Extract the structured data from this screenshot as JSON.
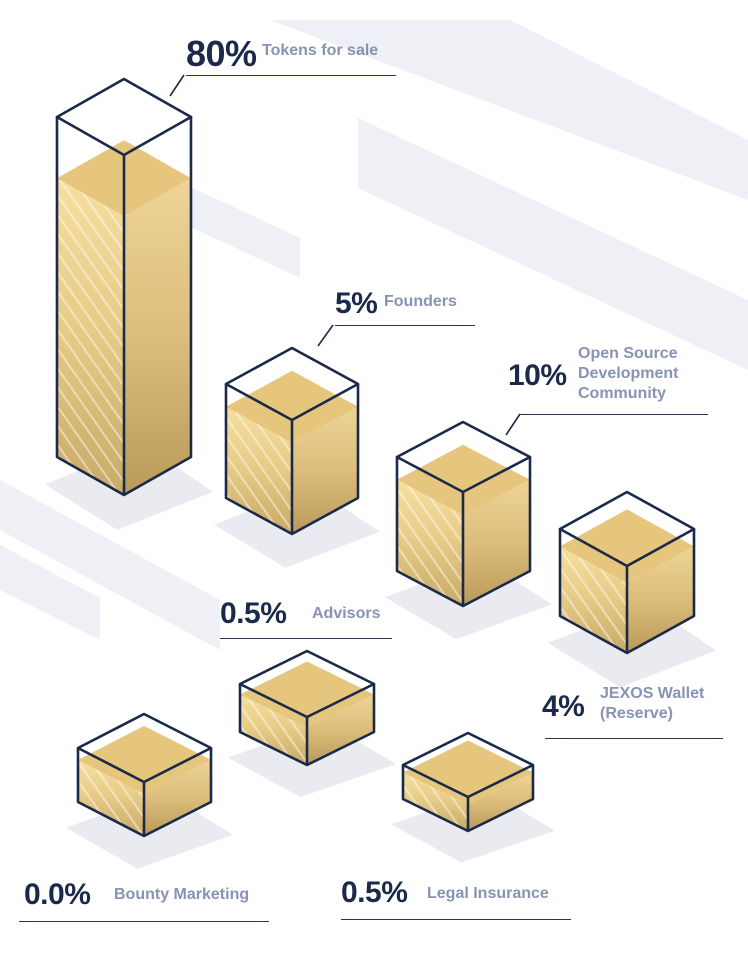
{
  "chart_data": {
    "type": "bar",
    "categories": [
      "Tokens for sale",
      "Founders",
      "Open Source Development Community",
      "JEXOS Wallet (Reserve)",
      "Advisors",
      "Bounty Marketing",
      "Legal Insurance"
    ],
    "values": [
      80,
      5,
      10,
      4,
      0.5,
      0.0,
      0.5
    ],
    "value_labels": [
      "80%",
      "5%",
      "10%",
      "4%",
      "0.5%",
      "0.0%",
      "0.5%"
    ],
    "label_lines": [
      [
        "Tokens for sale"
      ],
      [
        "Founders"
      ],
      [
        "Open Source",
        "Development",
        "Community"
      ],
      [
        "JEXOS Wallet",
        "(Reserve)"
      ],
      [
        "Advisors"
      ],
      [
        "Bounty Marketing"
      ],
      [
        "Legal Insurance"
      ]
    ],
    "unit": "%",
    "colors": {
      "outline": "#1b2a4a",
      "value_text": "#1b2a4a",
      "label_text": "#8793b3",
      "fill_light": "#f4dc9a",
      "fill_dark": "#c6a765",
      "top_fill": "#e6c57c",
      "shadow": "#e9ebf1",
      "decor_stripes": "#eef0f5"
    }
  }
}
